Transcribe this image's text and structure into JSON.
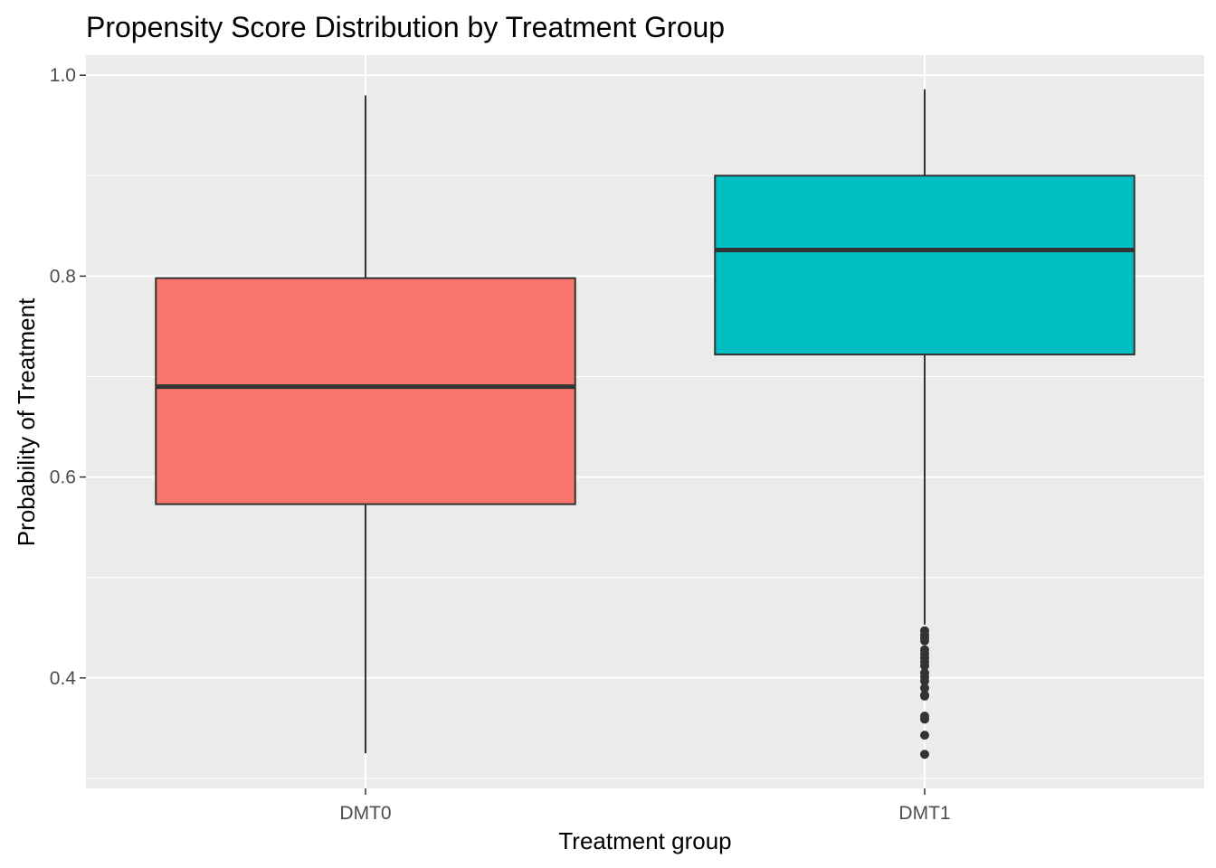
{
  "chart_data": {
    "type": "box",
    "title": "Propensity Score Distribution by Treatment Group",
    "xlabel": "Treatment group",
    "ylabel": "Probability of Treatment",
    "ylim": [
      0.29,
      1.02
    ],
    "yticks": [
      0.4,
      0.6,
      0.8,
      1.0
    ],
    "ytick_labels": [
      "0.4",
      "0.6",
      "0.8",
      "1.0"
    ],
    "grid": true,
    "legend": "none",
    "categories": [
      "DMT0",
      "DMT1"
    ],
    "boxes": [
      {
        "category": "DMT0",
        "color": "#F8766D",
        "whisker_low": 0.325,
        "q1": 0.573,
        "median": 0.69,
        "q3": 0.798,
        "whisker_high": 0.98,
        "outliers": []
      },
      {
        "category": "DMT1",
        "color": "#00BFC4",
        "whisker_low": 0.453,
        "q1": 0.722,
        "median": 0.826,
        "q3": 0.9,
        "whisker_high": 0.986,
        "outliers": [
          0.447,
          0.443,
          0.44,
          0.437,
          0.428,
          0.424,
          0.42,
          0.416,
          0.412,
          0.405,
          0.401,
          0.397,
          0.39,
          0.383,
          0.382,
          0.362,
          0.359,
          0.343,
          0.324
        ]
      }
    ]
  }
}
